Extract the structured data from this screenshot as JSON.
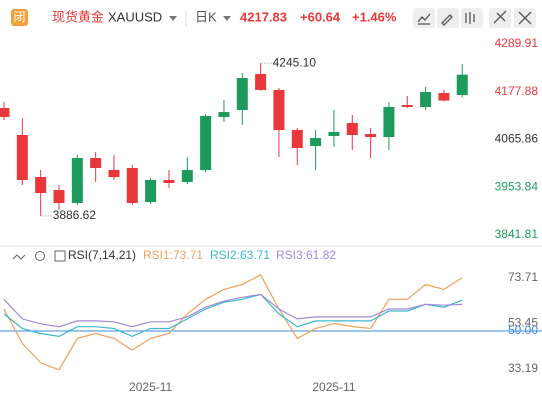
{
  "header": {
    "badge": "闭",
    "name": "现货黄金",
    "symbol": "XAUUSD",
    "period": "日K",
    "price": "4217.83",
    "change": "+60.64",
    "change_pct": "+1.46%"
  },
  "chart_data": [
    {
      "type": "candlestick",
      "open": [
        4139.7,
        4076.4,
        3977.9,
        3947.4,
        3916.9,
        4022.4,
        3994.3,
        3999.0,
        3919.2,
        3970.8,
        3966.1,
        3994.3,
        4118.6,
        4135.0,
        4219.5,
        4182.0,
        4088.1,
        4050.6,
        4074.1,
        4104.6,
        4078.7,
        4071.7,
        4146.8,
        4142.1,
        4174.9,
        4170.2
      ],
      "high": [
        4153.8,
        4116.3,
        3994.3,
        3959.1,
        4029.5,
        4036.5,
        4029.5,
        4006.0,
        3975.5,
        3994.3,
        4024.8,
        4125.7,
        4158.5,
        4221.8,
        4245.1,
        4186.7,
        4092.8,
        4088.1,
        4135.0,
        4123.3,
        4092.8,
        4153.8,
        4167.9,
        4189.0,
        4182.0,
        4243.0
      ],
      "low": [
        4111.6,
        3959.1,
        3886.62,
        3900.5,
        3912.2,
        3966.1,
        3970.8,
        3912.2,
        3914.5,
        3952.1,
        3961.4,
        3989.6,
        4106.9,
        4099.8,
        4180.0,
        4024.8,
        4006.0,
        3994.3,
        4048.2,
        4041.2,
        4022.4,
        4041.2,
        4139.7,
        4135.0,
        4155.0,
        4165.6
      ],
      "close": [
        4118.6,
        3970.8,
        3940.3,
        3916.9,
        4022.4,
        3999.0,
        3977.9,
        3916.9,
        3970.8,
        3963.8,
        3994.3,
        4121.0,
        4130.3,
        4210.1,
        4182.0,
        4088.1,
        4045.9,
        4069.4,
        4083.4,
        4076.4,
        4071.7,
        4142.1,
        4142.1,
        4177.3,
        4157.2,
        4217.83
      ],
      "up_color": "#1e9a5c",
      "down_color": "#e8383a",
      "ylim": [
        3825.4,
        4322.7
      ],
      "yticks": [
        4289.91,
        4177.88,
        4065.86,
        3953.84,
        3841.81
      ],
      "ytick_colors": [
        "#e8383a",
        "#e8383a",
        "#333333",
        "#1e9a5c",
        "#1e9a5c"
      ],
      "annotations": [
        {
          "value": 4245.1,
          "label": "4245.10"
        },
        {
          "value": 3886.62,
          "label": "3886.62"
        }
      ]
    },
    {
      "type": "line",
      "title": "RSI(7,14,21)",
      "categories": [
        null,
        null,
        null,
        null,
        null,
        null,
        null,
        null,
        "2025-11",
        null,
        null,
        null,
        null,
        null,
        null,
        null,
        null,
        null,
        "2025-11",
        null,
        null,
        null,
        null,
        null,
        null,
        null
      ],
      "series": [
        {
          "name": "RSI1:73.71",
          "color": "#f0a05a",
          "values": [
            59.8,
            44.5,
            35.8,
            32.8,
            46.7,
            48.9,
            46.7,
            41.5,
            46.7,
            48.9,
            57.6,
            64.1,
            68.5,
            70.7,
            75.0,
            59.8,
            46.7,
            51.1,
            53.3,
            52.0,
            51.1,
            64.1,
            64.1,
            70.7,
            68.5,
            73.71
          ]
        },
        {
          "name": "RSI2:63.71",
          "color": "#3bb8d0",
          "values": [
            57.6,
            51.1,
            48.9,
            47.6,
            51.9,
            51.9,
            51.1,
            47.6,
            51.1,
            51.1,
            55.4,
            59.8,
            62.8,
            64.1,
            66.3,
            57.6,
            51.9,
            54.5,
            54.5,
            54.5,
            54.5,
            58.9,
            58.9,
            61.9,
            60.6,
            63.71
          ]
        },
        {
          "name": "RSI3:61.82",
          "color": "#a48ad8",
          "values": [
            64.1,
            55.4,
            53.2,
            51.9,
            54.5,
            54.5,
            54.1,
            51.9,
            54.1,
            54.1,
            56.3,
            60.6,
            63.3,
            65.0,
            66.3,
            59.8,
            55.4,
            56.3,
            56.3,
            56.3,
            56.3,
            59.8,
            59.8,
            61.9,
            61.5,
            61.82
          ]
        }
      ],
      "ylim": [
        29.1,
        80.7
      ],
      "yticks": [
        73.71,
        53.45,
        {
          "value": 50,
          "label": "50.00"
        },
        33.19
      ],
      "ytick_colors": [
        "#666666",
        "#666666",
        "#3a8ede",
        "#666666"
      ],
      "ytick_lines": [
        false,
        false,
        true,
        false
      ]
    }
  ]
}
